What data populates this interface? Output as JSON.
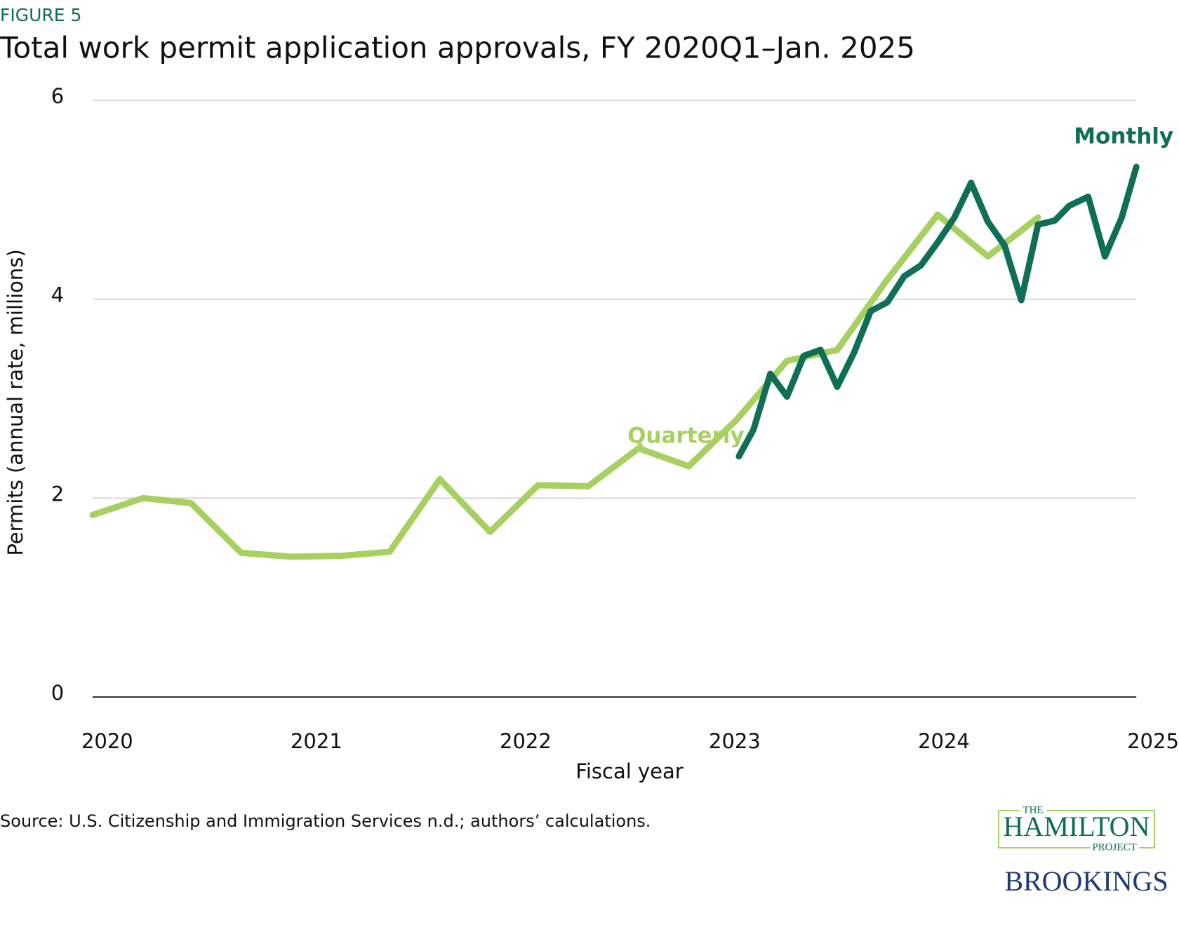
{
  "figure_label": "FIGURE 5",
  "chart_data": {
    "type": "line",
    "title": "Total work permit application approvals, FY 2020Q1–Jan. 2025",
    "x_label": "Fiscal year",
    "y_label": "Permits (annual rate, millions)",
    "xlim": [
      2019.93,
      2025
    ],
    "xticks": [
      2020,
      2021,
      2022,
      2023,
      2024,
      2025
    ],
    "ylim": [
      0,
      6
    ],
    "yticks": [
      0,
      2,
      4,
      6
    ],
    "grid": true,
    "series": [
      {
        "name": "Quarterly",
        "color": "#a6d05f",
        "x": [
          2019.93,
          2020.17,
          2020.4,
          2020.64,
          2020.88,
          2021.12,
          2021.35,
          2021.59,
          2021.83,
          2022.06,
          2022.3,
          2022.54,
          2022.78,
          2023.01,
          2023.25,
          2023.49,
          2023.72,
          2023.97,
          2024.21,
          2024.45
        ],
        "values": [
          1.83,
          2.0,
          1.95,
          1.45,
          1.41,
          1.42,
          1.46,
          2.19,
          1.66,
          2.13,
          2.12,
          2.5,
          2.32,
          2.79,
          3.38,
          3.49,
          4.17,
          4.85,
          4.43,
          4.82
        ]
      },
      {
        "name": "Monthly",
        "color": "#0e6e56",
        "x": [
          2023.02,
          2023.09,
          2023.17,
          2023.25,
          2023.33,
          2023.41,
          2023.49,
          2023.57,
          2023.65,
          2023.73,
          2023.81,
          2023.89,
          2023.97,
          2024.05,
          2024.13,
          2024.21,
          2024.29,
          2024.37,
          2024.45,
          2024.53,
          2024.6,
          2024.69,
          2024.77,
          2024.85,
          2024.92
        ],
        "values": [
          2.42,
          2.69,
          3.25,
          3.02,
          3.43,
          3.49,
          3.12,
          3.46,
          3.88,
          3.97,
          4.23,
          4.34,
          4.57,
          4.82,
          5.17,
          4.78,
          4.54,
          3.99,
          4.75,
          4.79,
          4.94,
          5.03,
          4.43,
          4.82,
          5.33
        ]
      }
    ]
  },
  "source": "Source: U.S. Citizenship and Immigration Services n.d.; authors’ calculations.",
  "logos": {
    "the": "THE",
    "hamilton": "HAMILTON",
    "project": "PROJECT",
    "brookings": "BROOKINGS"
  }
}
